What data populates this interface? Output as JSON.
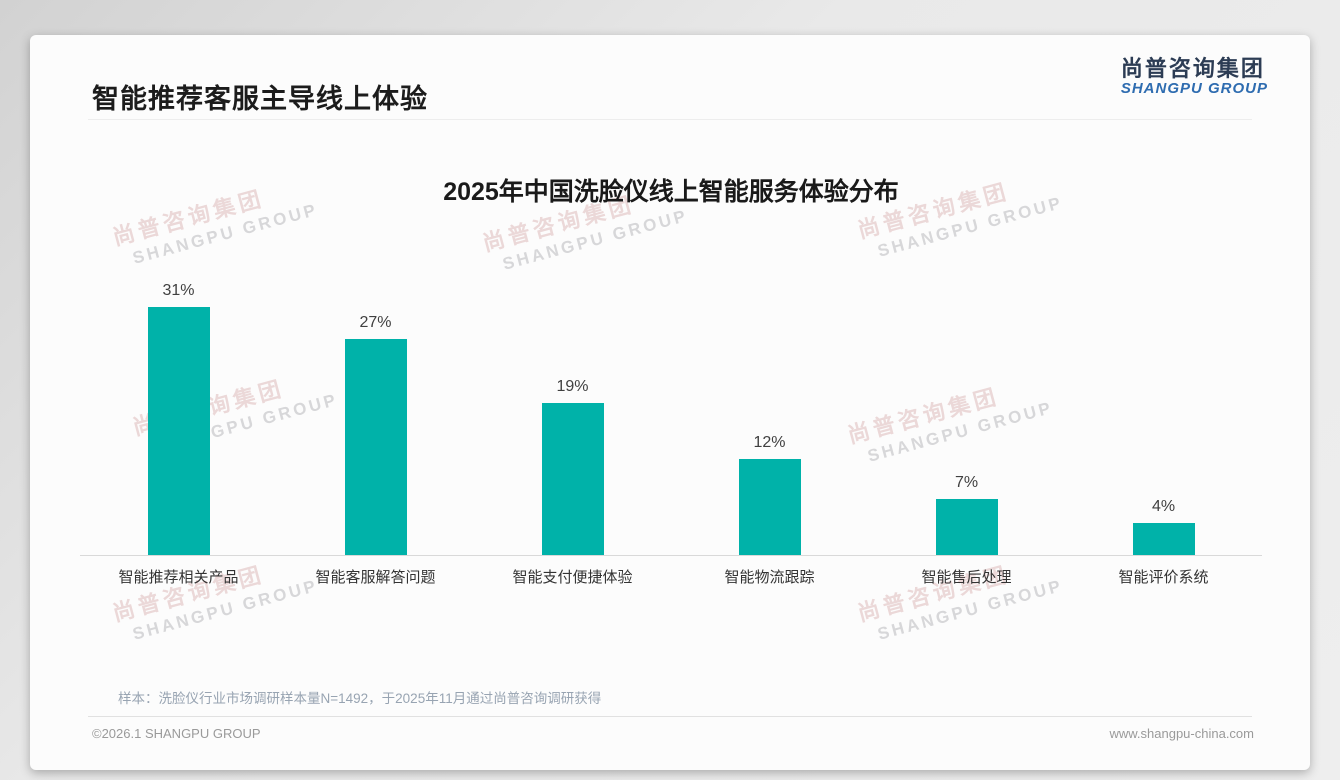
{
  "page": {
    "title": "智能推荐客服主导线上体验",
    "logo": {
      "cn": "尚普咨询集团",
      "en": "SHANGPU GROUP"
    },
    "watermark": {
      "cn": "尚普咨询集团",
      "en": "SHANGPU GROUP"
    },
    "footnote": "样本：洗脸仪行业市场调研样本量N=1492，于2025年11月通过尚普咨询调研获得",
    "footer_left": "©2026.1 SHANGPU GROUP",
    "footer_right": "www.shangpu-china.com"
  },
  "chart_data": {
    "type": "bar",
    "title": "2025年中国洗脸仪线上智能服务体验分布",
    "categories": [
      "智能推荐相关产品",
      "智能客服解答问题",
      "智能支付便捷体验",
      "智能物流跟踪",
      "智能售后处理",
      "智能评价系统"
    ],
    "values": [
      31,
      27,
      19,
      12,
      7,
      4
    ],
    "value_labels": [
      "31%",
      "27%",
      "19%",
      "12%",
      "7%",
      "4%"
    ],
    "bar_color": "#00b2a9",
    "xlabel": "",
    "ylabel": "",
    "ylim": [
      0,
      35
    ],
    "grid": false,
    "legend": "none",
    "value_label_position": "above-bar"
  }
}
